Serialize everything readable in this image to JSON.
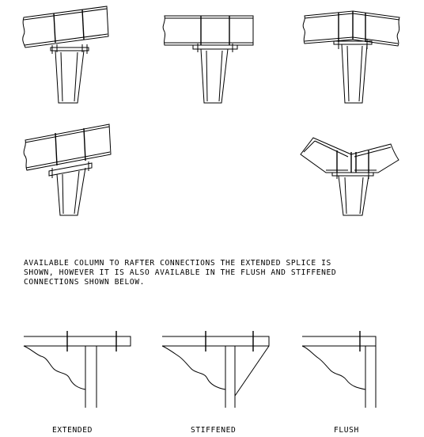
{
  "note": {
    "line1": "AVAILABLE COLUMN TO RAFTER CONNECTIONS THE EXTENDED SPLICE IS",
    "line2": "SHOWN, HOWEVER IT IS ALSO AVAILABLE IN THE FLUSH AND STIFFENED",
    "line3": "CONNECTIONS SHOWN BELOW."
  },
  "labels": {
    "extended": "EXTENDED",
    "stiffened": "STIFFENED",
    "flush": "FLUSH"
  },
  "colors": {
    "ink": "#000000",
    "background": "#ffffff"
  }
}
